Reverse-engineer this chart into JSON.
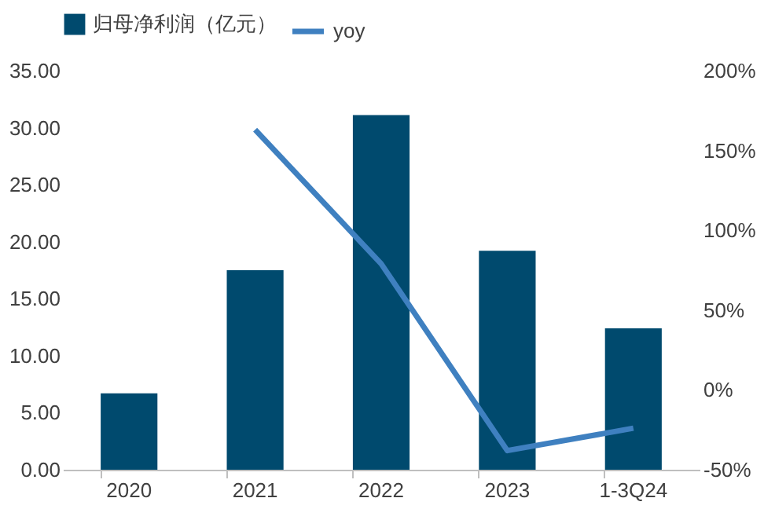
{
  "chart_data": {
    "type": "bar",
    "categories": [
      "2020",
      "2021",
      "2022",
      "2023",
      "1-3Q24"
    ],
    "series": [
      {
        "name": "归母净利润（亿元）",
        "color": "#004a6e",
        "values": [
          6.7,
          17.5,
          31.1,
          19.2,
          12.4
        ]
      },
      {
        "name": "yoy",
        "color": "#3f80c0",
        "type": "line",
        "axis": "y2",
        "values": [
          null,
          163,
          79,
          -38,
          -24
        ]
      }
    ],
    "ylim": [
      0,
      35
    ],
    "yticks": [
      {
        "value": 0,
        "label": "0.00"
      },
      {
        "value": 5,
        "label": "5.00"
      },
      {
        "value": 10,
        "label": "10.00"
      },
      {
        "value": 15,
        "label": "15.00"
      },
      {
        "value": 20,
        "label": "20.00"
      },
      {
        "value": 25,
        "label": "25.00"
      },
      {
        "value": 30,
        "label": "30.00"
      },
      {
        "value": 35,
        "label": "35.00"
      }
    ],
    "y2lim": [
      -50,
      200
    ],
    "y2ticks": [
      {
        "value": -50,
        "label": "-50%"
      },
      {
        "value": 0,
        "label": "0%"
      },
      {
        "value": 50,
        "label": "50%"
      },
      {
        "value": 100,
        "label": "100%"
      },
      {
        "value": 150,
        "label": "150%"
      },
      {
        "value": 200,
        "label": "200%"
      }
    ],
    "grid": false,
    "legend": "top",
    "marker": "none",
    "line_style": "solid"
  }
}
